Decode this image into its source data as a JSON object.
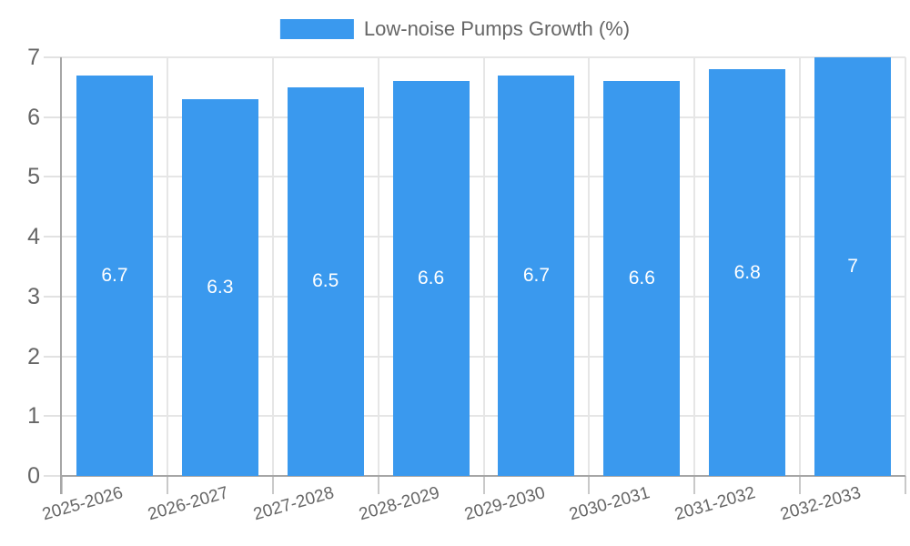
{
  "legend": {
    "label": "Low-noise Pumps Growth (%)"
  },
  "chart_data": {
    "type": "bar",
    "title": "",
    "categories": [
      "2025-2026",
      "2026-2027",
      "2027-2028",
      "2028-2029",
      "2029-2030",
      "2030-2031",
      "2031-2032",
      "2032-2033"
    ],
    "series": [
      {
        "name": "Low-noise Pumps Growth (%)",
        "values": [
          6.7,
          6.3,
          6.5,
          6.6,
          6.7,
          6.6,
          6.8,
          7
        ]
      }
    ],
    "bar_value_labels": [
      "6.7",
      "6.3",
      "6.5",
      "6.6",
      "6.7",
      "6.6",
      "6.8",
      "7"
    ],
    "xlabel": "",
    "ylabel": "",
    "ylim": [
      0,
      7
    ],
    "yticks": [
      0,
      1,
      2,
      3,
      4,
      5,
      6,
      7
    ],
    "grid": true,
    "legend_position": "top-center",
    "x_label_rotation_deg": -16,
    "colors": {
      "bar": "#3a99ee",
      "grid": "#e6e6e6",
      "tick_y": "#e2e2e2",
      "tick_x": "#c9c9c9",
      "axis": "#a6a6a6",
      "text": "#666666",
      "value_label": "#ffffff"
    }
  }
}
